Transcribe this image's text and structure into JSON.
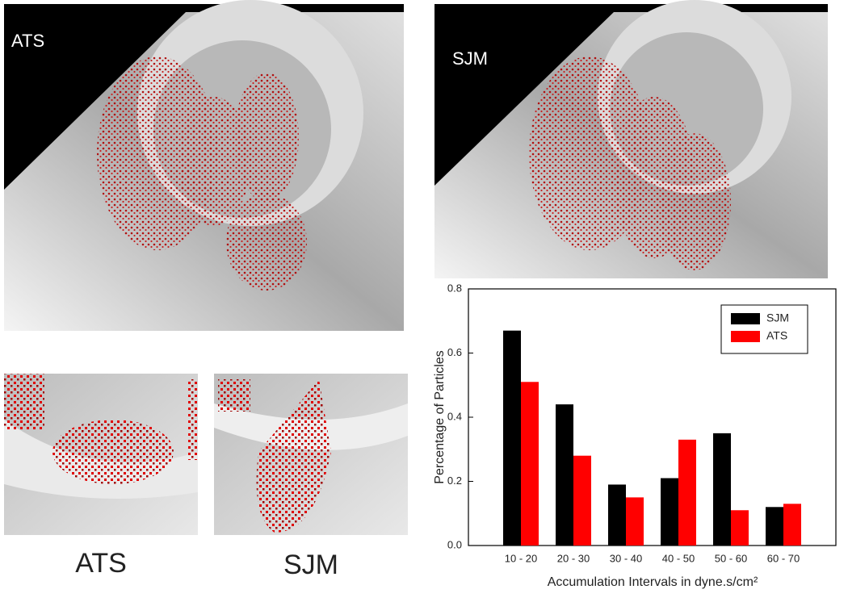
{
  "panels": {
    "top_left_label": "ATS",
    "top_right_label": "SJM",
    "bottom_left_caption": "ATS",
    "bottom_right_caption": "SJM"
  },
  "chart_data": {
    "type": "bar",
    "xlabel": "Accumulation Intervals in dyne.s/cm²",
    "ylabel": "Percentage of Particles",
    "categories": [
      "10 - 20",
      "20 - 30",
      "30 - 40",
      "40 - 50",
      "50 - 60",
      "60 - 70"
    ],
    "series": [
      {
        "name": "SJM",
        "color": "#000000",
        "values": [
          0.67,
          0.44,
          0.19,
          0.21,
          0.35,
          0.12
        ]
      },
      {
        "name": "ATS",
        "color": "#ff0000",
        "values": [
          0.51,
          0.28,
          0.15,
          0.33,
          0.11,
          0.13
        ]
      }
    ],
    "ylim": [
      0,
      0.8
    ],
    "yticks": [
      {
        "value": 0,
        "label": "0.0"
      },
      0.2,
      0.4,
      0.6,
      0.8
    ],
    "legend": "upper right"
  }
}
